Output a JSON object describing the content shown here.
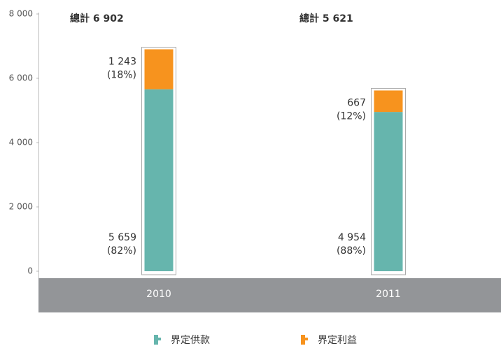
{
  "chart_data": {
    "type": "stacked_bar",
    "categories": [
      "2010",
      "2011"
    ],
    "series": [
      {
        "name": "界定供款",
        "color": "#66b5ad",
        "values": [
          5659,
          4954
        ],
        "value_labels": [
          "5 659",
          "4 954"
        ],
        "share_labels": [
          "(82%)",
          "(88%)"
        ]
      },
      {
        "name": "界定利益",
        "color": "#f7931e",
        "values": [
          1243,
          667
        ],
        "value_labels": [
          "1 243",
          "667"
        ],
        "share_labels": [
          "(18%)",
          "(12%)"
        ]
      }
    ],
    "annotations": [
      "總計  6 902",
      "總計  5 621"
    ],
    "ylim": [
      0,
      8000
    ],
    "yticks": [
      0,
      {
        "value": 2000,
        "label": "2 000"
      },
      {
        "value": 4000,
        "label": "4 000"
      },
      {
        "value": 6000,
        "label": "6 000"
      },
      {
        "value": 8000,
        "label": "8 000"
      }
    ],
    "legend": "bottom"
  }
}
